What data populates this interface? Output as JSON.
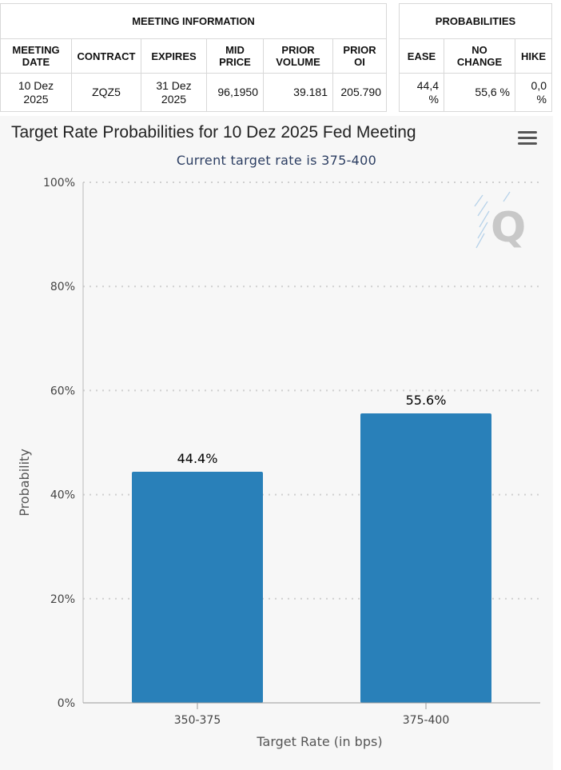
{
  "meeting_info": {
    "header": "MEETING INFORMATION",
    "columns": [
      "MEETING\nDATE",
      "CONTRACT",
      "EXPIRES",
      "MID\nPRICE",
      "PRIOR\nVOLUME",
      "PRIOR\nOI"
    ],
    "row": {
      "meeting_date": "10 Dez\n2025",
      "contract": "ZQZ5",
      "expires": "31 Dez\n2025",
      "mid_price": "96,1950",
      "prior_volume": "39.181",
      "prior_oi": "205.790"
    }
  },
  "probabilities": {
    "header": "PROBABILITIES",
    "columns": [
      "EASE",
      "NO\nCHANGE",
      "HIKE"
    ],
    "row": {
      "ease": "44,4\n%",
      "no_change": "55,6 %",
      "hike": "0,0\n%"
    }
  },
  "chart_data": {
    "type": "bar",
    "title": "Target Rate Probabilities for 10 Dez 2025 Fed Meeting",
    "subtitle": "Current target rate is 375-400",
    "categories": [
      "350-375",
      "375-400"
    ],
    "values": [
      44.4,
      55.6
    ],
    "data_labels": [
      "44.4%",
      "55.6%"
    ],
    "xlabel": "Target Rate (in bps)",
    "ylabel": "Probability",
    "ylim": [
      0,
      100
    ],
    "yticks": [
      0,
      20,
      40,
      60,
      80,
      100
    ],
    "ytick_labels": [
      "0%",
      "20%",
      "40%",
      "60%",
      "80%",
      "100%"
    ],
    "grid": "dotted horizontal",
    "bar_color": "#2980b9",
    "grid_color": "#d0d0d0",
    "watermark_icon": "q-logo-icon"
  }
}
